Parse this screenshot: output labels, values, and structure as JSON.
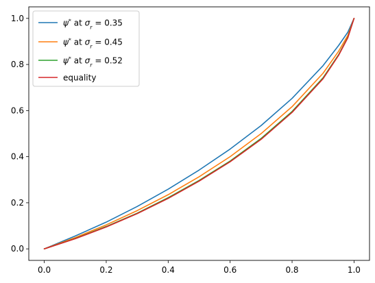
{
  "chart_data": {
    "type": "line",
    "title": "",
    "xlabel": "",
    "ylabel": "",
    "xlim": [
      -0.05,
      1.05
    ],
    "ylim": [
      -0.05,
      1.05
    ],
    "xticks": [
      0.0,
      0.2,
      0.4,
      0.6,
      0.8,
      1.0
    ],
    "yticks": [
      0.0,
      0.2,
      0.4,
      0.6,
      0.8,
      1.0
    ],
    "xtick_labels": [
      "0.0",
      "0.2",
      "0.4",
      "0.6",
      "0.8",
      "1.0"
    ],
    "ytick_labels": [
      "0.0",
      "0.2",
      "0.4",
      "0.6",
      "0.8",
      "1.0"
    ],
    "grid": false,
    "legend_position": "top-left",
    "x": [
      0.0,
      0.1,
      0.2,
      0.3,
      0.4,
      0.5,
      0.6,
      0.7,
      0.8,
      0.9,
      0.95,
      0.98,
      1.0
    ],
    "series": [
      {
        "name": "ψ* at σr = 0.35",
        "legend": {
          "psi": "ψ",
          "star": "*",
          "at": " at ",
          "sigma": "σ",
          "sub": "r",
          "value": " = 0.35"
        },
        "color": "#1f77b4",
        "values": [
          0.0,
          0.056,
          0.116,
          0.184,
          0.259,
          0.342,
          0.433,
          0.535,
          0.653,
          0.795,
          0.882,
          0.94,
          1.0
        ]
      },
      {
        "name": "ψ* at σr = 0.45",
        "legend": {
          "psi": "ψ",
          "star": "*",
          "at": " at ",
          "sigma": "σ",
          "sub": "r",
          "value": " = 0.45"
        },
        "color": "#ff7f0e",
        "values": [
          0.0,
          0.049,
          0.104,
          0.166,
          0.235,
          0.313,
          0.4,
          0.5,
          0.617,
          0.762,
          0.857,
          0.926,
          1.0
        ]
      },
      {
        "name": "ψ* at σr = 0.52",
        "legend": {
          "psi": "ψ",
          "star": "*",
          "at": " at ",
          "sigma": "σ",
          "sub": "r",
          "value": " = 0.52"
        },
        "color": "#2ca02c",
        "values": [
          0.0,
          0.045,
          0.097,
          0.155,
          0.222,
          0.297,
          0.381,
          0.479,
          0.596,
          0.742,
          0.842,
          0.918,
          1.0
        ]
      },
      {
        "name": "equality",
        "legend": {
          "label": "equality"
        },
        "color": "#d62728",
        "values": [
          0.0,
          0.044,
          0.095,
          0.153,
          0.219,
          0.294,
          0.378,
          0.475,
          0.592,
          0.738,
          0.839,
          0.916,
          1.0
        ]
      }
    ]
  }
}
